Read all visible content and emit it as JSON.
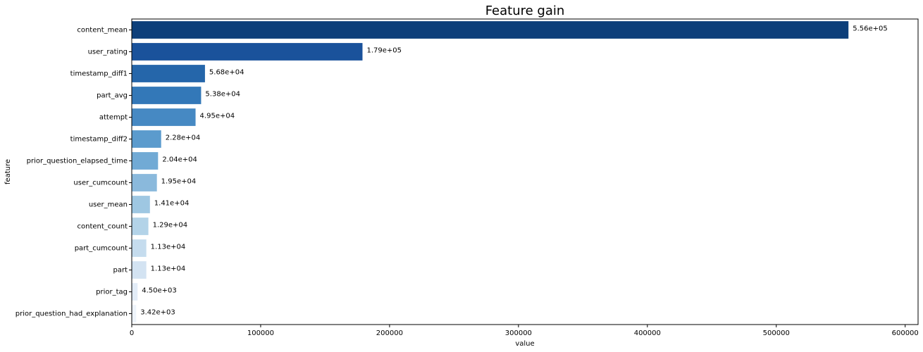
{
  "chart_data": {
    "type": "bar",
    "orientation": "horizontal",
    "title": "Feature gain",
    "xlabel": "value",
    "ylabel": "feature",
    "xlim": [
      0,
      610000
    ],
    "xticks": [
      0,
      100000,
      200000,
      300000,
      400000,
      500000,
      600000
    ],
    "xtick_labels": [
      "0",
      "100000",
      "200000",
      "300000",
      "400000",
      "500000",
      "600000"
    ],
    "grid": false,
    "categories": [
      "content_mean",
      "user_rating",
      "timestamp_diff1",
      "part_avg",
      "attempt",
      "timestamp_diff2",
      "prior_question_elapsed_time",
      "user_cumcount",
      "user_mean",
      "content_count",
      "part_cumcount",
      "part",
      "prior_tag",
      "prior_question_had_explanation"
    ],
    "values": [
      556000,
      179000,
      56800,
      53800,
      49500,
      22800,
      20400,
      19500,
      14100,
      12900,
      11300,
      11300,
      4500,
      3420
    ],
    "value_labels": [
      "5.56e+05",
      "1.79e+05",
      "5.68e+04",
      "5.38e+04",
      "4.95e+04",
      "2.28e+04",
      "2.04e+04",
      "1.95e+04",
      "1.41e+04",
      "1.29e+04",
      "1.13e+04",
      "1.13e+04",
      "4.50e+03",
      "3.42e+03"
    ],
    "colors": [
      "#0d3f7a",
      "#1a529b",
      "#2566aa",
      "#3378b8",
      "#4689c3",
      "#5b9bcd",
      "#71aad5",
      "#8ab9dc",
      "#9ec7e2",
      "#b3d3e8",
      "#c5dcee",
      "#d3e3f2",
      "#e2ecf7",
      "#eef4fb"
    ]
  }
}
